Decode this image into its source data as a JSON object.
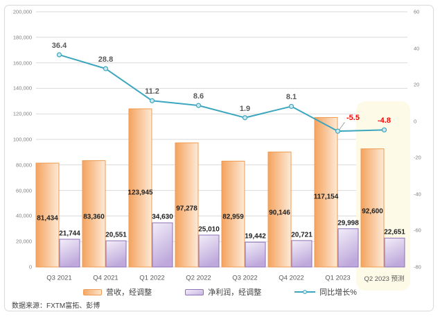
{
  "chart_data": {
    "type": "combo",
    "title": "",
    "categories": [
      "Q3 2021",
      "Q4 2021",
      "Q1 2022",
      "Q2 2022",
      "Q3 2022",
      "Q4 2022",
      "Q1 2023",
      "Q2 2023 预测"
    ],
    "series": [
      {
        "name": "营收，经调整",
        "type": "bar",
        "axis": "left",
        "values": [
          81434,
          83360,
          123945,
          97278,
          82959,
          90146,
          117154,
          92600
        ],
        "labels": [
          "81,434",
          "83,360",
          "123,945",
          "97,278",
          "82,959",
          "90,146",
          "117,154",
          "92,600"
        ],
        "border_color": "#ef9a50",
        "fill_light": "#fdead6",
        "fill_dark": "#f4a35f"
      },
      {
        "name": "净利润，经调整",
        "type": "bar",
        "axis": "left",
        "values": [
          21744,
          20551,
          34630,
          25010,
          19442,
          20721,
          29998,
          22651
        ],
        "labels": [
          "21,744",
          "20,551",
          "34,630",
          "25,010",
          "19,442",
          "20,721",
          "29,998",
          "22,651"
        ],
        "border_color": "#8e72b8",
        "fill_light": "#f2eef9",
        "fill_dark": "#bfa9dc"
      },
      {
        "name": "同比增长%",
        "type": "line",
        "axis": "right",
        "values": [
          36.4,
          28.8,
          11.2,
          8.6,
          1.9,
          8.1,
          -5.5,
          -4.8
        ],
        "labels": [
          "36.4",
          "28.8",
          "11.2",
          "8.6",
          "1.9",
          "8.1",
          "-5.5",
          "-4.8"
        ],
        "color": "#3ba6be",
        "marker_fill": "#cfe9f0",
        "label_color": "#595959",
        "negative_label_color": "#ff0000"
      }
    ],
    "left_axis": {
      "min": 0,
      "max": 200000,
      "step": 20000,
      "tick_labels": [
        "0",
        "20,000",
        "40,000",
        "60,000",
        "80,000",
        "100,000",
        "120,000",
        "140,000",
        "160,000",
        "180,000",
        "200,000"
      ]
    },
    "right_axis": {
      "min": -80,
      "max": 60,
      "step": 20,
      "tick_labels": [
        "60",
        "40",
        "20",
        "0",
        "-20",
        "-40",
        "-60",
        "-80"
      ]
    },
    "grid": true,
    "gridline_color": "#d9d9d9",
    "legend_position": "bottom",
    "forecast": {
      "category_index": 7,
      "label": "预测",
      "highlight_color": "#fdfbe8"
    }
  },
  "footer": {
    "source": "数据来源：FXTM富拓、彭博"
  }
}
